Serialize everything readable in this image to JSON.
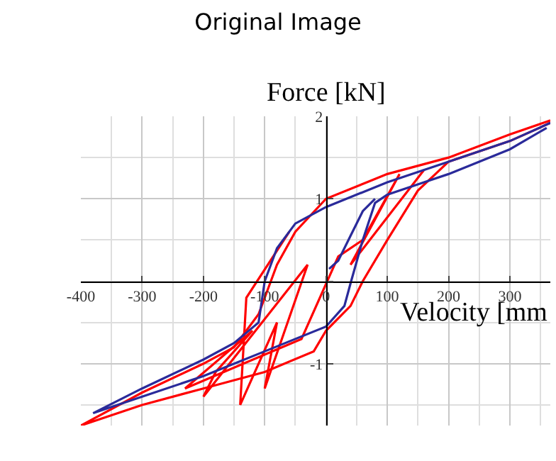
{
  "chart_data": {
    "type": "line",
    "title": "Original Image",
    "xlabel": "Velocity [mm",
    "ylabel": "Force [kN]",
    "xlim": [
      -400,
      366
    ],
    "ylim": [
      -1.75,
      2
    ],
    "xticks": [
      -400,
      -300,
      -200,
      -100,
      0,
      100,
      200,
      300
    ],
    "yticks": [
      2,
      1,
      {
        "value": 0,
        "label": null
      },
      -1
    ],
    "grid": true,
    "line_style": "solid",
    "marker": "none",
    "series": [
      {
        "color": "#ff0000",
        "x": [
          366,
          300,
          200,
          100,
          0,
          -50,
          -80,
          -90,
          -110,
          -150,
          -200,
          -300,
          -400,
          -300,
          -200,
          -100,
          -20,
          0,
          40,
          60,
          100,
          150,
          200,
          300,
          366
        ],
        "values": [
          1.95,
          1.78,
          1.5,
          1.3,
          1.0,
          0.6,
          0.2,
          0.0,
          -0.4,
          -0.8,
          -1.0,
          -1.35,
          -1.75,
          -1.5,
          -1.3,
          -1.1,
          -0.85,
          -0.6,
          -0.3,
          0.0,
          0.5,
          1.1,
          1.45,
          1.7,
          1.92
        ]
      },
      {
        "color": "#ff0000",
        "x": [
          -60,
          -130,
          -140,
          -80,
          -100,
          -30,
          -200,
          -180,
          -120,
          -230,
          -40,
          20,
          60,
          120,
          40,
          160
        ],
        "values": [
          0.6,
          -0.2,
          -1.5,
          -0.5,
          -1.3,
          0.2,
          -1.4,
          -1.1,
          -0.6,
          -1.3,
          -0.7,
          0.3,
          0.5,
          1.3,
          0.2,
          1.35
        ]
      },
      {
        "color": "#2a2a9a",
        "x": [
          5,
          20,
          40,
          60,
          80
        ],
        "values": [
          0.15,
          0.25,
          0.55,
          0.85,
          1.0
        ]
      },
      {
        "color": "#2a2a9a",
        "x": [
          366,
          300,
          200,
          100,
          0,
          -50,
          -80,
          -100,
          -110,
          -150,
          -200,
          -300,
          -380,
          -300,
          -200,
          -100,
          0,
          30,
          41,
          60,
          80,
          100,
          200,
          300,
          360
        ],
        "values": [
          1.92,
          1.7,
          1.45,
          1.2,
          0.9,
          0.7,
          0.4,
          0.0,
          -0.5,
          -0.75,
          -0.95,
          -1.3,
          -1.6,
          -1.4,
          -1.15,
          -0.85,
          -0.55,
          -0.3,
          0.0,
          0.5,
          0.95,
          1.05,
          1.3,
          1.6,
          1.86
        ]
      }
    ]
  }
}
